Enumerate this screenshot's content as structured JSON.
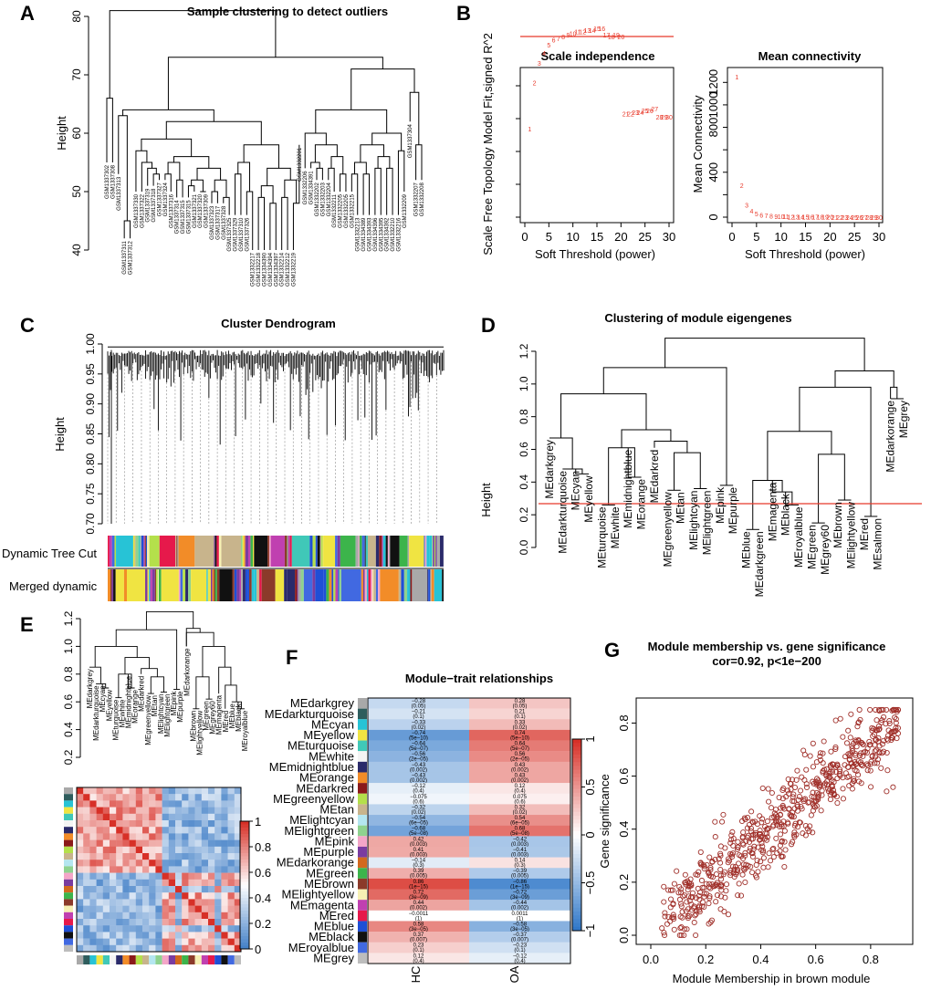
{
  "panels": {
    "A": {
      "label": "A",
      "title": "Sample clustering to detect outliers",
      "ylabel": "Height",
      "yticks": [
        "40",
        "50",
        "60",
        "70",
        "80"
      ],
      "leaves": [
        "GSM1337302",
        "GSM1337308",
        "GSM1337313",
        "GSM1337311",
        "GSM1337312",
        "GSM1337330",
        "GSM1337322",
        "GSM1337319",
        "GSM1337318",
        "GSM1337327",
        "GSM1337324",
        "GSM1337316",
        "GSM1337314",
        "GSM1337315",
        "GSM1337321",
        "GSM1337320",
        "GSM1337309",
        "GSM1337323",
        "GSM1337317",
        "GSM1337328",
        "GSM1337325",
        "GSM1337329",
        "GSM1337310",
        "GSM1337326",
        "GSM1332217",
        "GSM1332218",
        "GSM1334390",
        "GSM1334394",
        "GSM1334397",
        "GSM1332214",
        "GSM1332212",
        "GSM1332219",
        "GSM1332201",
        "GSM1332206",
        "GSM1334391",
        "GSM1332202",
        "GSM1332203",
        "GSM1332204",
        "GSM1332211",
        "GSM1332205",
        "GSM1332215",
        "GSM1332213",
        "GSM1334389",
        "GSM1334393",
        "GSM1334396",
        "GSM1334395",
        "GSM1334392",
        "GSM1332210",
        "GSM1332216",
        "GSM1332209",
        "GSM1337304",
        "GSM1332207",
        "GSM1332208"
      ]
    },
    "B": {
      "label": "B",
      "ylabel_left": "Scale Free Topology Model Fit,signed R^2",
      "ylabel_right": "Mean Connectivity",
      "xlabel": "Soft Threshold (power)"
    },
    "C": {
      "label": "C",
      "title": "Cluster Dendrogram",
      "ylabel": "Height",
      "yticks": [
        "0.70",
        "0.75",
        "0.80",
        "0.85",
        "0.90",
        "0.95",
        "1.00"
      ],
      "row1": "Dynamic Tree Cut",
      "row2": "Merged dynamic"
    },
    "D": {
      "label": "D",
      "title": "Clustering of module eigengenes",
      "ylabel": "Height",
      "yticks": [
        "0.0",
        "0.2",
        "0.4",
        "0.6",
        "0.8",
        "1.0",
        "1.2"
      ],
      "leaves": [
        "MEdarkgrey",
        "MEdarkturquoise",
        "MEcyan",
        "MEyellow",
        "MEturquoise",
        "MEwhite",
        "MEmidnightblue",
        "MEorange",
        "MEdarkred",
        "MEgreenyellow",
        "MEtan",
        "MElightcyan",
        "MElightgreen",
        "MEpink",
        "MEpurple",
        "MEblue",
        "MEdarkgreen",
        "MEmagenta",
        "MEblack",
        "MEroyalblue",
        "MEgreen",
        "MEgrey60",
        "MEbrown",
        "MElightyellow",
        "MEred",
        "MEsalmon",
        "MEdarkorange",
        "MEgrey"
      ]
    },
    "E": {
      "label": "E",
      "yticks": [
        "0.2",
        "0.4",
        "0.6",
        "0.8",
        "1.0",
        "1.2"
      ],
      "legend": [
        "0",
        "0.2",
        "0.4",
        "0.6",
        "0.8",
        "1"
      ],
      "leaves": [
        "MEdarkgrey",
        "MEdarkturquoise",
        "MEcyan",
        "MEyellow",
        "MEturquoise",
        "MEwhite",
        "MEmidnightblue",
        "MEorange",
        "MEdarkred",
        "MEgreenyellow",
        "MEtan",
        "MElightcyan",
        "MElightgreen",
        "MEpink",
        "MEpurple",
        "MEdarkorange",
        "MEbrown",
        "MElightyellow",
        "MEgreen",
        "MEgrey60",
        "MEmagenta",
        "MEred",
        "MEblue",
        "MEblack",
        "MEroyalblue"
      ]
    },
    "F": {
      "label": "F",
      "title": "Module−trait relationships",
      "cols": [
        "HC",
        "OA"
      ],
      "legend": [
        "1",
        "0.5",
        "0",
        "−0.5",
        "−1"
      ]
    },
    "G": {
      "label": "G",
      "title1": "Module membership vs. gene significance",
      "title2": "cor=0.92, p<1e−200",
      "xlabel": "Module Membership in brown module",
      "ylabel": "Gene significance"
    }
  },
  "chart_data": [
    {
      "type": "scatter",
      "title": "Scale independence",
      "xlabel": "Soft Threshold (power)",
      "ylabel": "Scale Free Topology Model Fit,signed R^2",
      "xlim": [
        0,
        30
      ],
      "xticks": [
        "0",
        "5",
        "10",
        "15",
        "20",
        "25",
        "30"
      ],
      "yticks": [
        "-0.2",
        "0.0",
        "0.2",
        "0.4",
        "0.6",
        "0.8"
      ],
      "threshold": 0.9,
      "x": [
        1,
        2,
        3,
        4,
        5,
        6,
        7,
        8,
        9,
        10,
        11,
        12,
        13,
        14,
        15,
        16,
        17,
        18,
        19,
        20,
        21,
        22,
        23,
        24,
        25,
        26,
        27,
        28,
        29,
        30
      ],
      "y": [
        0.34,
        0.62,
        0.74,
        0.8,
        0.85,
        0.88,
        0.89,
        0.9,
        0.91,
        0.92,
        0.93,
        0.93,
        0.94,
        0.94,
        0.95,
        0.95,
        0.91,
        0.9,
        0.91,
        0.9,
        0.43,
        0.43,
        0.44,
        0.44,
        0.45,
        0.45,
        0.46,
        0.41,
        0.41,
        0.41
      ]
    },
    {
      "type": "scatter",
      "title": "Mean connectivity",
      "xlabel": "Soft Threshold (power)",
      "ylabel": "Mean Connectivity",
      "xlim": [
        0,
        30
      ],
      "xticks": [
        "0",
        "5",
        "10",
        "15",
        "20",
        "25",
        "30"
      ],
      "yticks": [
        "0",
        "200",
        "400",
        "600",
        "800",
        "1000",
        "1200"
      ],
      "x": [
        1,
        2,
        3,
        4,
        5,
        6,
        7,
        8,
        9,
        10,
        11,
        12,
        13,
        14,
        15,
        16,
        17,
        18,
        19,
        20,
        21,
        22,
        23,
        24,
        25,
        26,
        27,
        28,
        29,
        30
      ],
      "y": [
        1250,
        285,
        110,
        55,
        33,
        22,
        16,
        12,
        10,
        8,
        7,
        6,
        5,
        5,
        4,
        4,
        3,
        3,
        3,
        3,
        2,
        2,
        2,
        2,
        2,
        2,
        2,
        2,
        2,
        2
      ]
    },
    {
      "type": "heatmap",
      "title": "Module−trait relationships",
      "columns": [
        "HC",
        "OA"
      ],
      "rows": [
        {
          "module": "MEdarkgrey",
          "color": "#a9a9a9",
          "HC": [
            -0.28,
            "(0.05)"
          ],
          "OA": [
            0.28,
            "(0.05)"
          ]
        },
        {
          "module": "MEdarkturquoise",
          "color": "#2e5d5d",
          "HC": [
            -0.21,
            "(0.1)"
          ],
          "OA": [
            0.21,
            "(0.1)"
          ]
        },
        {
          "module": "MEcyan",
          "color": "#27c3d6",
          "HC": [
            -0.33,
            "(0.02)"
          ],
          "OA": [
            0.33,
            "(0.02)"
          ]
        },
        {
          "module": "MEyellow",
          "color": "#f0e442",
          "HC": [
            -0.74,
            "(5e−10)"
          ],
          "OA": [
            0.74,
            "(5e−10)"
          ]
        },
        {
          "module": "MEturquoise",
          "color": "#40c8b8",
          "HC": [
            -0.64,
            "(5e−07)"
          ],
          "OA": [
            0.64,
            "(5e−07)"
          ]
        },
        {
          "module": "MEwhite",
          "color": "#f4f4f4",
          "HC": [
            -0.56,
            "(2e−05)"
          ],
          "OA": [
            0.56,
            "(2e−05)"
          ]
        },
        {
          "module": "MEmidnightblue",
          "color": "#2a2a6a",
          "HC": [
            -0.43,
            "(0.002)"
          ],
          "OA": [
            0.43,
            "(0.002)"
          ]
        },
        {
          "module": "MEorange",
          "color": "#f28c28",
          "HC": [
            -0.43,
            "(0.002)"
          ],
          "OA": [
            0.43,
            "(0.002)"
          ]
        },
        {
          "module": "MEdarkred",
          "color": "#8b1a1a",
          "HC": [
            -0.12,
            "(0.4)"
          ],
          "OA": [
            0.12,
            "(0.4)"
          ]
        },
        {
          "module": "MEgreenyellow",
          "color": "#b4e04b",
          "HC": [
            -0.075,
            "(0.6)"
          ],
          "OA": [
            0.075,
            "(0.6)"
          ]
        },
        {
          "module": "MEtan",
          "color": "#c8b48c",
          "HC": [
            -0.32,
            "(0.02)"
          ],
          "OA": [
            0.32,
            "(0.02)"
          ]
        },
        {
          "module": "MElightcyan",
          "color": "#b4e6f0",
          "HC": [
            -0.54,
            "(6e−05)"
          ],
          "OA": [
            0.54,
            "(6e−05)"
          ]
        },
        {
          "module": "MElightgreen",
          "color": "#8fd28f",
          "HC": [
            -0.68,
            "(5e−08)"
          ],
          "OA": [
            0.68,
            "(5e−08)"
          ]
        },
        {
          "module": "MEpink",
          "color": "#f4a6c8",
          "HC": [
            0.42,
            "(0.003)"
          ],
          "OA": [
            -0.42,
            "(0.003)"
          ]
        },
        {
          "module": "MEpurple",
          "color": "#7a3ca0",
          "HC": [
            0.41,
            "(0.003)"
          ],
          "OA": [
            -0.41,
            "(0.003)"
          ]
        },
        {
          "module": "MEdarkorange",
          "color": "#d2691e",
          "HC": [
            -0.14,
            "(0.3)"
          ],
          "OA": [
            0.14,
            "(0.3)"
          ]
        },
        {
          "module": "MEgreen",
          "color": "#3cb44b",
          "HC": [
            0.39,
            "(0.005)"
          ],
          "OA": [
            -0.39,
            "(0.005)"
          ]
        },
        {
          "module": "MEbrown",
          "color": "#8b3a2a",
          "HC": [
            0.86,
            "(1e−15)"
          ],
          "OA": [
            -0.86,
            "(1e−15)"
          ]
        },
        {
          "module": "MElightyellow",
          "color": "#f6f0b4",
          "HC": [
            0.72,
            "(3e−09)"
          ],
          "OA": [
            -0.72,
            "(3e−09)"
          ]
        },
        {
          "module": "MEmagenta",
          "color": "#c040b0",
          "HC": [
            0.44,
            "(0.002)"
          ],
          "OA": [
            -0.44,
            "(0.002)"
          ]
        },
        {
          "module": "MEred",
          "color": "#e6194b",
          "HC": [
            -0.0011,
            "(1)"
          ],
          "OA": [
            0.0011,
            "(1)"
          ]
        },
        {
          "module": "MEblue",
          "color": "#1f4fd6",
          "HC": [
            0.58,
            "(3e−05)"
          ],
          "OA": [
            -0.58,
            "(3e−05)"
          ]
        },
        {
          "module": "MEblack",
          "color": "#111111",
          "HC": [
            0.37,
            "(0.007)"
          ],
          "OA": [
            -0.37,
            "(0.007)"
          ]
        },
        {
          "module": "MEroyalblue",
          "color": "#4169e1",
          "HC": [
            0.23,
            "(0.1)"
          ],
          "OA": [
            -0.23,
            "(0.1)"
          ]
        },
        {
          "module": "MEgrey",
          "color": "#bdbdbd",
          "HC": [
            0.12,
            "(0.4)"
          ],
          "OA": [
            -0.12,
            "(0.4)"
          ]
        }
      ]
    },
    {
      "type": "scatter",
      "title": "Module membership vs. gene significance",
      "xlabel": "Module Membership in brown module",
      "ylabel": "Gene significance",
      "xlim": [
        0,
        0.92
      ],
      "ylim": [
        0,
        0.86
      ],
      "xticks": [
        "0.0",
        "0.2",
        "0.4",
        "0.6",
        "0.8"
      ],
      "yticks": [
        "0.0",
        "0.2",
        "0.4",
        "0.6",
        "0.8"
      ],
      "correlation": 0.92,
      "n_points": 650,
      "point_color": "#a0302a"
    }
  ]
}
